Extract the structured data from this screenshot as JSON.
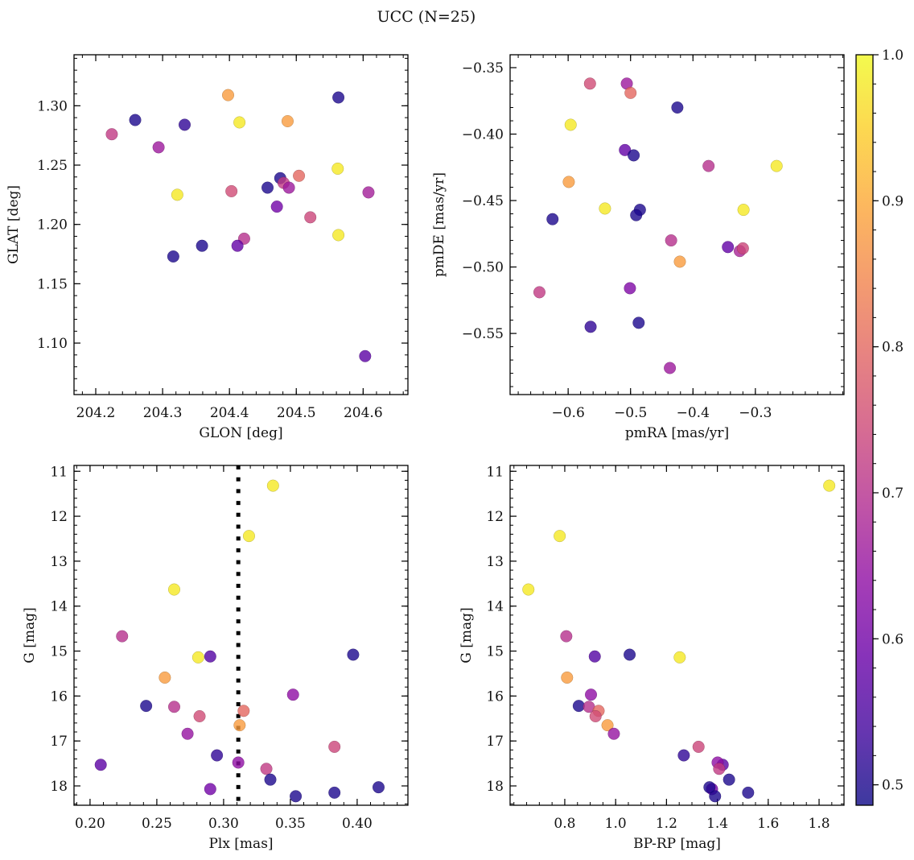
{
  "title": "UCC (N=25)",
  "colorbar": {
    "range": [
      0.486,
      1.0
    ],
    "ticks": [
      0.5,
      0.6,
      0.7,
      0.8,
      0.9,
      1.0
    ],
    "tick_labels": [
      "0.5",
      "0.6",
      "0.7",
      "0.8",
      "0.9",
      "1.0"
    ],
    "colormap": "plasma"
  },
  "chart_data": [
    {
      "type": "scatter",
      "xlabel": "GLON [deg]",
      "ylabel": "GLAT [deg]",
      "xlim": [
        204.1675,
        204.667
      ],
      "ylim": [
        1.0566,
        1.343
      ],
      "xticks": [
        204.2,
        204.3,
        204.4,
        204.5,
        204.6
      ],
      "xtick_labels": [
        "204.2",
        "204.3",
        "204.4",
        "204.5",
        "204.6"
      ],
      "yticks": [
        1.1,
        1.15,
        1.2,
        1.25,
        1.3
      ],
      "ytick_labels": [
        "1.10",
        "1.15",
        "1.20",
        "1.25",
        "1.30"
      ],
      "xminor": 0.02,
      "yminor": 0.01,
      "points": [
        {
          "x": 204.224,
          "y": 1.276,
          "c": 0.72
        },
        {
          "x": 204.259,
          "y": 1.288,
          "c": 0.5
        },
        {
          "x": 204.333,
          "y": 1.284,
          "c": 0.52
        },
        {
          "x": 204.294,
          "y": 1.265,
          "c": 0.66
        },
        {
          "x": 204.398,
          "y": 1.309,
          "c": 0.88
        },
        {
          "x": 204.415,
          "y": 1.286,
          "c": 0.98
        },
        {
          "x": 204.487,
          "y": 1.287,
          "c": 0.88
        },
        {
          "x": 204.563,
          "y": 1.307,
          "c": 0.5
        },
        {
          "x": 204.562,
          "y": 1.247,
          "c": 0.98
        },
        {
          "x": 204.504,
          "y": 1.241,
          "c": 0.8
        },
        {
          "x": 204.476,
          "y": 1.239,
          "c": 0.5
        },
        {
          "x": 204.481,
          "y": 1.235,
          "c": 0.72
        },
        {
          "x": 204.489,
          "y": 1.231,
          "c": 0.66
        },
        {
          "x": 204.457,
          "y": 1.231,
          "c": 0.5
        },
        {
          "x": 204.608,
          "y": 1.227,
          "c": 0.67
        },
        {
          "x": 204.322,
          "y": 1.225,
          "c": 0.98
        },
        {
          "x": 204.403,
          "y": 1.228,
          "c": 0.75
        },
        {
          "x": 204.471,
          "y": 1.215,
          "c": 0.6
        },
        {
          "x": 204.521,
          "y": 1.206,
          "c": 0.74
        },
        {
          "x": 204.563,
          "y": 1.191,
          "c": 0.98
        },
        {
          "x": 204.422,
          "y": 1.188,
          "c": 0.7
        },
        {
          "x": 204.412,
          "y": 1.182,
          "c": 0.58
        },
        {
          "x": 204.359,
          "y": 1.182,
          "c": 0.5
        },
        {
          "x": 204.316,
          "y": 1.173,
          "c": 0.5
        },
        {
          "x": 204.603,
          "y": 1.089,
          "c": 0.57
        }
      ]
    },
    {
      "type": "scatter",
      "xlabel": "pmRA [mas/yr]",
      "ylabel": "pmDE [mas/yr]",
      "xlim": [
        -0.693,
        -0.158
      ],
      "ylim": [
        -0.596,
        -0.3403
      ],
      "xticks": [
        -0.6,
        -0.5,
        -0.4,
        -0.3
      ],
      "xtick_labels": [
        "−0.6",
        "−0.5",
        "−0.4",
        "−0.3"
      ],
      "yticks": [
        -0.55,
        -0.5,
        -0.45,
        -0.4,
        -0.35
      ],
      "ytick_labels": [
        "−0.55",
        "−0.50",
        "−0.45",
        "−0.40",
        "−0.35"
      ],
      "xminor": 0.02,
      "yminor": 0.01,
      "points": [
        {
          "x": -0.565,
          "y": -0.362,
          "c": 0.75
        },
        {
          "x": -0.506,
          "y": -0.362,
          "c": 0.66
        },
        {
          "x": -0.5,
          "y": -0.369,
          "c": 0.8
        },
        {
          "x": -0.425,
          "y": -0.38,
          "c": 0.5
        },
        {
          "x": -0.596,
          "y": -0.393,
          "c": 0.98
        },
        {
          "x": -0.509,
          "y": -0.412,
          "c": 0.58
        },
        {
          "x": -0.495,
          "y": -0.416,
          "c": 0.5
        },
        {
          "x": -0.375,
          "y": -0.424,
          "c": 0.7
        },
        {
          "x": -0.266,
          "y": -0.424,
          "c": 0.98
        },
        {
          "x": -0.599,
          "y": -0.436,
          "c": 0.88
        },
        {
          "x": -0.541,
          "y": -0.456,
          "c": 0.98
        },
        {
          "x": -0.485,
          "y": -0.457,
          "c": 0.5
        },
        {
          "x": -0.491,
          "y": -0.461,
          "c": 0.5
        },
        {
          "x": -0.625,
          "y": -0.464,
          "c": 0.5
        },
        {
          "x": -0.319,
          "y": -0.457,
          "c": 0.98
        },
        {
          "x": -0.435,
          "y": -0.48,
          "c": 0.7
        },
        {
          "x": -0.344,
          "y": -0.485,
          "c": 0.58
        },
        {
          "x": -0.325,
          "y": -0.488,
          "c": 0.68
        },
        {
          "x": -0.32,
          "y": -0.486,
          "c": 0.74
        },
        {
          "x": -0.421,
          "y": -0.496,
          "c": 0.88
        },
        {
          "x": -0.646,
          "y": -0.519,
          "c": 0.72
        },
        {
          "x": -0.501,
          "y": -0.516,
          "c": 0.62
        },
        {
          "x": -0.487,
          "y": -0.542,
          "c": 0.5
        },
        {
          "x": -0.564,
          "y": -0.545,
          "c": 0.52
        },
        {
          "x": -0.437,
          "y": -0.576,
          "c": 0.66
        }
      ]
    },
    {
      "type": "scatter",
      "xlabel": "Plx [mas]",
      "ylabel": "G [mag]",
      "xlim": [
        0.188,
        0.438
      ],
      "ylim": [
        18.43,
        10.87
      ],
      "y_inverted": true,
      "xticks": [
        0.2,
        0.25,
        0.3,
        0.35,
        0.4
      ],
      "xtick_labels": [
        "0.20",
        "0.25",
        "0.30",
        "0.35",
        "0.40"
      ],
      "yticks": [
        11,
        12,
        13,
        14,
        15,
        16,
        17,
        18
      ],
      "ytick_labels": [
        "11",
        "12",
        "13",
        "14",
        "15",
        "16",
        "17",
        "18"
      ],
      "xminor": 0.01,
      "yminor": 0.2,
      "vline": {
        "x": 0.311,
        "style": "dotted",
        "color": "#000000"
      },
      "points": [
        {
          "x": 0.337,
          "y": 11.32,
          "c": 0.98
        },
        {
          "x": 0.319,
          "y": 12.44,
          "c": 0.98
        },
        {
          "x": 0.263,
          "y": 13.63,
          "c": 0.98
        },
        {
          "x": 0.224,
          "y": 14.67,
          "c": 0.7
        },
        {
          "x": 0.281,
          "y": 15.14,
          "c": 0.98
        },
        {
          "x": 0.29,
          "y": 15.12,
          "c": 0.56
        },
        {
          "x": 0.397,
          "y": 15.08,
          "c": 0.5
        },
        {
          "x": 0.256,
          "y": 15.59,
          "c": 0.88
        },
        {
          "x": 0.352,
          "y": 15.97,
          "c": 0.64
        },
        {
          "x": 0.242,
          "y": 16.22,
          "c": 0.5
        },
        {
          "x": 0.263,
          "y": 16.24,
          "c": 0.7
        },
        {
          "x": 0.315,
          "y": 16.33,
          "c": 0.8
        },
        {
          "x": 0.282,
          "y": 16.45,
          "c": 0.75
        },
        {
          "x": 0.312,
          "y": 16.65,
          "c": 0.88
        },
        {
          "x": 0.273,
          "y": 16.84,
          "c": 0.65
        },
        {
          "x": 0.383,
          "y": 17.13,
          "c": 0.74
        },
        {
          "x": 0.295,
          "y": 17.32,
          "c": 0.52
        },
        {
          "x": 0.208,
          "y": 17.53,
          "c": 0.57
        },
        {
          "x": 0.311,
          "y": 17.48,
          "c": 0.64
        },
        {
          "x": 0.332,
          "y": 17.62,
          "c": 0.72
        },
        {
          "x": 0.335,
          "y": 17.86,
          "c": 0.5
        },
        {
          "x": 0.29,
          "y": 18.07,
          "c": 0.6
        },
        {
          "x": 0.354,
          "y": 18.23,
          "c": 0.5
        },
        {
          "x": 0.383,
          "y": 18.15,
          "c": 0.5
        },
        {
          "x": 0.416,
          "y": 18.03,
          "c": 0.5
        }
      ]
    },
    {
      "type": "scatter",
      "xlabel": "BP-RP [mag]",
      "ylabel": "G [mag]",
      "xlim": [
        0.585,
        1.898
      ],
      "ylim": [
        18.43,
        10.87
      ],
      "y_inverted": true,
      "xticks": [
        0.8,
        1.0,
        1.2,
        1.4,
        1.6,
        1.8
      ],
      "xtick_labels": [
        "0.8",
        "1.0",
        "1.2",
        "1.4",
        "1.6",
        "1.8"
      ],
      "yticks": [
        11,
        12,
        13,
        14,
        15,
        16,
        17,
        18
      ],
      "ytick_labels": [
        "11",
        "12",
        "13",
        "14",
        "15",
        "16",
        "17",
        "18"
      ],
      "xminor": 0.05,
      "yminor": 0.2,
      "points": [
        {
          "x": 1.84,
          "y": 11.32,
          "c": 0.98
        },
        {
          "x": 0.78,
          "y": 12.44,
          "c": 0.98
        },
        {
          "x": 0.657,
          "y": 13.63,
          "c": 0.98
        },
        {
          "x": 0.806,
          "y": 14.67,
          "c": 0.7
        },
        {
          "x": 0.918,
          "y": 15.12,
          "c": 0.56
        },
        {
          "x": 1.055,
          "y": 15.08,
          "c": 0.5
        },
        {
          "x": 1.252,
          "y": 15.14,
          "c": 0.98
        },
        {
          "x": 0.809,
          "y": 15.59,
          "c": 0.88
        },
        {
          "x": 0.903,
          "y": 15.97,
          "c": 0.64
        },
        {
          "x": 0.855,
          "y": 16.22,
          "c": 0.5
        },
        {
          "x": 0.895,
          "y": 16.24,
          "c": 0.7
        },
        {
          "x": 0.933,
          "y": 16.33,
          "c": 0.8
        },
        {
          "x": 0.921,
          "y": 16.45,
          "c": 0.75
        },
        {
          "x": 0.968,
          "y": 16.65,
          "c": 0.88
        },
        {
          "x": 0.993,
          "y": 16.84,
          "c": 0.65
        },
        {
          "x": 1.326,
          "y": 17.13,
          "c": 0.74
        },
        {
          "x": 1.268,
          "y": 17.32,
          "c": 0.52
        },
        {
          "x": 1.421,
          "y": 17.53,
          "c": 0.57
        },
        {
          "x": 1.401,
          "y": 17.48,
          "c": 0.64
        },
        {
          "x": 1.407,
          "y": 17.62,
          "c": 0.72
        },
        {
          "x": 1.446,
          "y": 17.86,
          "c": 0.5
        },
        {
          "x": 1.379,
          "y": 18.07,
          "c": 0.6
        },
        {
          "x": 1.391,
          "y": 18.23,
          "c": 0.5
        },
        {
          "x": 1.521,
          "y": 18.15,
          "c": 0.5
        },
        {
          "x": 1.369,
          "y": 18.03,
          "c": 0.5
        }
      ]
    }
  ]
}
